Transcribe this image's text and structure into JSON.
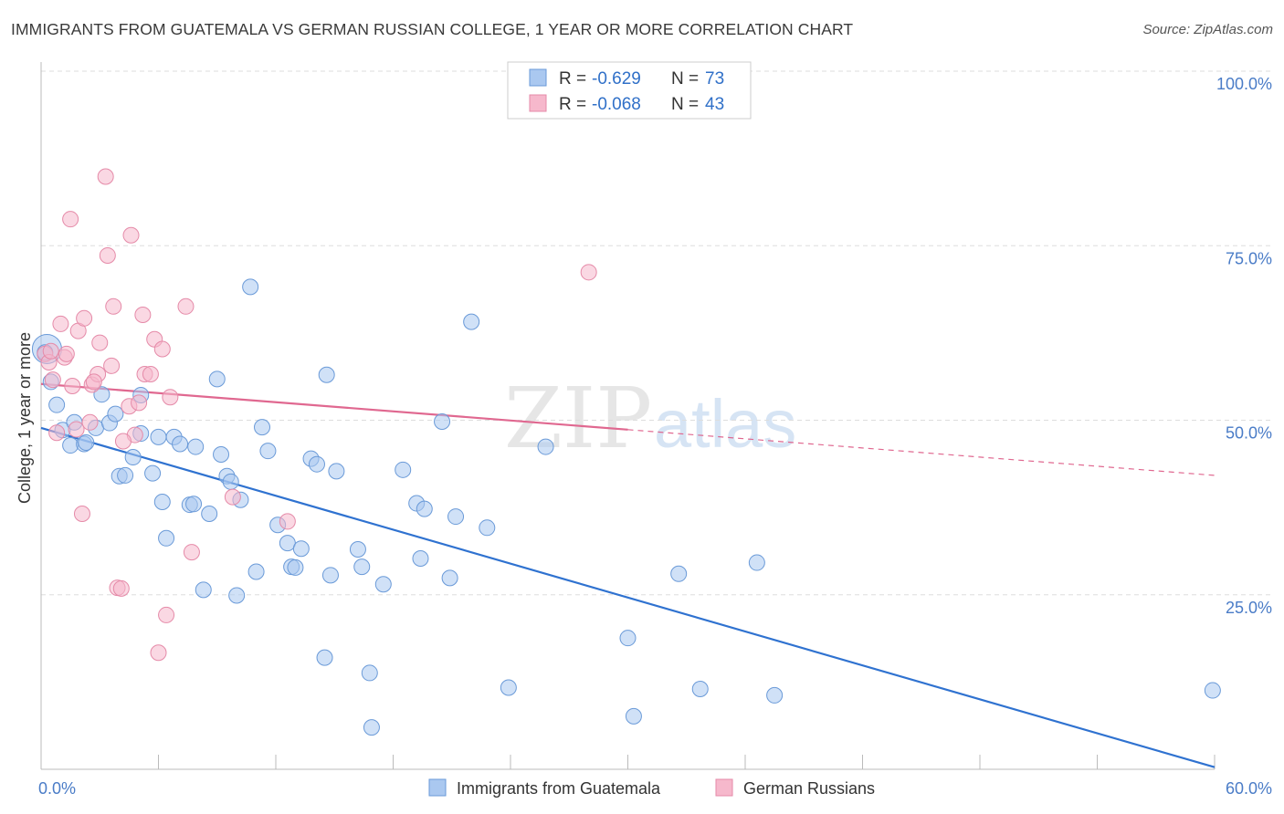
{
  "title": "IMMIGRANTS FROM GUATEMALA VS GERMAN RUSSIAN COLLEGE, 1 YEAR OR MORE CORRELATION CHART",
  "source": "Source: ZipAtlas.com",
  "watermark": {
    "zip": "ZIP",
    "atlas": "atlas"
  },
  "legend": {
    "r_label": "R =",
    "n_label": "N =",
    "items": [
      {
        "r": "-0.629",
        "n": "73"
      },
      {
        "r": "-0.068",
        "n": "43"
      }
    ]
  },
  "colors": {
    "blue_fill": "#aac8f0",
    "blue_stroke": "#6a9ad8",
    "blue_line": "#2f72d0",
    "pink_fill": "#f6b8cc",
    "pink_stroke": "#e58aa8",
    "pink_line": "#e06890",
    "grid": "#dddddd",
    "tick_text": "#4a7cc7"
  },
  "chart_data": {
    "type": "scatter",
    "title": "IMMIGRANTS FROM GUATEMALA VS GERMAN RUSSIAN COLLEGE, 1 YEAR OR MORE CORRELATION CHART",
    "xlabel": "",
    "ylabel": "College, 1 year or more",
    "xlim": [
      0,
      60
    ],
    "ylim": [
      0,
      100
    ],
    "x_tick_labels": [
      "0.0%",
      "60.0%"
    ],
    "y_ticks": [
      25,
      50,
      75,
      100
    ],
    "y_tick_labels": [
      "25.0%",
      "50.0%",
      "75.0%",
      "100.0%"
    ],
    "grid": true,
    "legend_position": "top-center",
    "series": [
      {
        "name": "Immigrants from Guatemala",
        "color": "#aac8f0",
        "trend": {
          "x": [
            0,
            60
          ],
          "y": [
            48.9,
            0.3
          ],
          "solid_until_x": 60
        },
        "points": [
          [
            0.3,
            60.2
          ],
          [
            0.5,
            55.5
          ],
          [
            0.8,
            52.2
          ],
          [
            1.1,
            48.6
          ],
          [
            1.5,
            46.4
          ],
          [
            1.7,
            49.7
          ],
          [
            2.2,
            46.6
          ],
          [
            2.3,
            46.8
          ],
          [
            2.8,
            48.9
          ],
          [
            3.1,
            53.7
          ],
          [
            3.5,
            49.6
          ],
          [
            3.8,
            50.9
          ],
          [
            4.0,
            42.0
          ],
          [
            4.3,
            42.1
          ],
          [
            4.7,
            44.7
          ],
          [
            5.1,
            53.6
          ],
          [
            5.1,
            48.1
          ],
          [
            5.7,
            42.4
          ],
          [
            6.0,
            47.6
          ],
          [
            6.2,
            38.3
          ],
          [
            6.4,
            33.1
          ],
          [
            6.8,
            47.6
          ],
          [
            7.1,
            46.6
          ],
          [
            7.6,
            37.9
          ],
          [
            7.8,
            38.0
          ],
          [
            7.9,
            46.2
          ],
          [
            8.3,
            25.7
          ],
          [
            8.6,
            36.6
          ],
          [
            9.0,
            55.9
          ],
          [
            9.2,
            45.1
          ],
          [
            9.5,
            42.0
          ],
          [
            9.7,
            41.2
          ],
          [
            10.0,
            24.9
          ],
          [
            10.2,
            38.6
          ],
          [
            10.7,
            69.1
          ],
          [
            11.0,
            28.3
          ],
          [
            11.3,
            49.0
          ],
          [
            11.6,
            45.6
          ],
          [
            12.1,
            35.0
          ],
          [
            12.6,
            32.4
          ],
          [
            12.8,
            29.0
          ],
          [
            13.0,
            28.9
          ],
          [
            13.3,
            31.6
          ],
          [
            13.8,
            44.5
          ],
          [
            14.1,
            43.7
          ],
          [
            14.5,
            16.0
          ],
          [
            14.6,
            56.5
          ],
          [
            14.8,
            27.8
          ],
          [
            15.1,
            42.7
          ],
          [
            16.2,
            31.5
          ],
          [
            16.4,
            29.0
          ],
          [
            16.8,
            13.8
          ],
          [
            16.9,
            6.0
          ],
          [
            17.5,
            26.5
          ],
          [
            18.5,
            42.9
          ],
          [
            19.2,
            38.1
          ],
          [
            19.4,
            30.2
          ],
          [
            19.6,
            37.3
          ],
          [
            20.5,
            49.8
          ],
          [
            20.9,
            27.4
          ],
          [
            21.2,
            36.2
          ],
          [
            22.0,
            64.1
          ],
          [
            22.8,
            34.6
          ],
          [
            23.9,
            11.7
          ],
          [
            25.8,
            46.2
          ],
          [
            30.0,
            18.8
          ],
          [
            30.3,
            7.6
          ],
          [
            32.6,
            28.0
          ],
          [
            33.7,
            11.5
          ],
          [
            36.6,
            29.6
          ],
          [
            37.5,
            10.6
          ],
          [
            59.9,
            11.3
          ],
          [
            0.2,
            59.7
          ]
        ]
      },
      {
        "name": "German Russians",
        "color": "#f6b8cc",
        "trend": {
          "x": [
            0,
            60
          ],
          "y": [
            55.2,
            42.1
          ],
          "solid_until_x": 30.0
        },
        "points": [
          [
            0.2,
            59.5
          ],
          [
            0.4,
            58.3
          ],
          [
            0.6,
            55.8
          ],
          [
            0.8,
            48.2
          ],
          [
            1.0,
            63.8
          ],
          [
            1.2,
            59.0
          ],
          [
            1.3,
            59.5
          ],
          [
            1.6,
            54.9
          ],
          [
            1.8,
            48.7
          ],
          [
            1.9,
            62.8
          ],
          [
            2.1,
            36.6
          ],
          [
            2.2,
            64.6
          ],
          [
            2.5,
            49.7
          ],
          [
            2.6,
            55.1
          ],
          [
            2.9,
            56.6
          ],
          [
            3.0,
            61.1
          ],
          [
            3.3,
            84.9
          ],
          [
            3.4,
            73.6
          ],
          [
            3.6,
            57.8
          ],
          [
            3.7,
            66.3
          ],
          [
            3.9,
            26.0
          ],
          [
            4.1,
            25.9
          ],
          [
            4.5,
            52.0
          ],
          [
            4.6,
            76.5
          ],
          [
            4.8,
            47.9
          ],
          [
            5.0,
            52.5
          ],
          [
            5.2,
            65.1
          ],
          [
            5.3,
            56.6
          ],
          [
            5.6,
            56.6
          ],
          [
            5.8,
            61.6
          ],
          [
            6.0,
            16.7
          ],
          [
            6.2,
            60.2
          ],
          [
            6.4,
            22.1
          ],
          [
            6.6,
            53.3
          ],
          [
            7.4,
            66.3
          ],
          [
            7.7,
            31.1
          ],
          [
            9.8,
            39.0
          ],
          [
            12.6,
            35.5
          ],
          [
            28.0,
            71.2
          ],
          [
            0.5,
            59.9
          ],
          [
            1.5,
            78.8
          ],
          [
            2.7,
            55.5
          ],
          [
            4.2,
            47.0
          ]
        ]
      }
    ]
  }
}
